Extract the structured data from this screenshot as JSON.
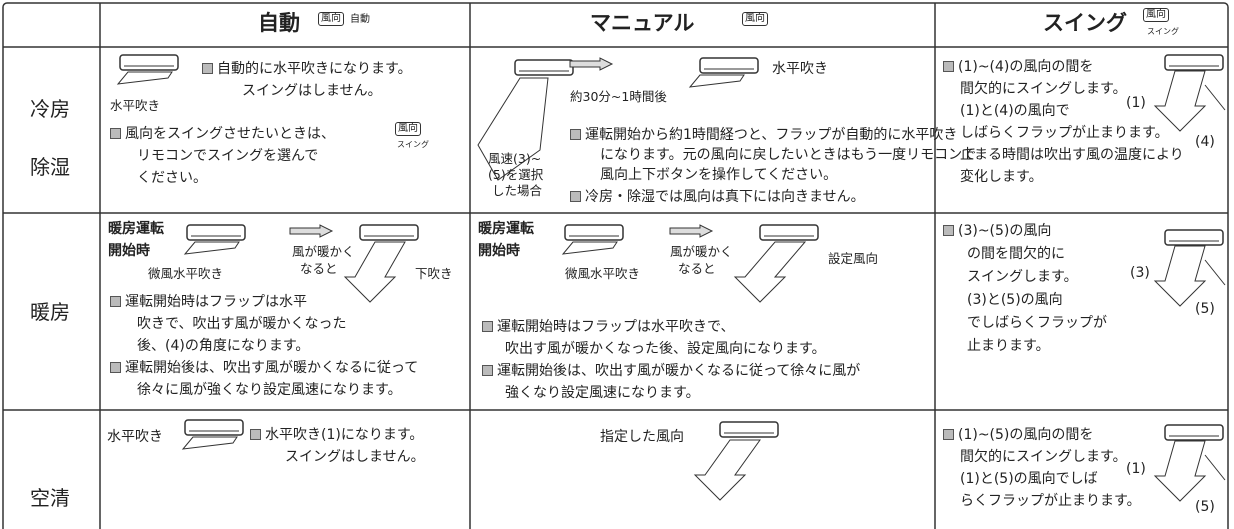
{
  "header": {
    "columns": [
      {
        "title": "自動",
        "icon": "風向",
        "icon_caption": "自動"
      },
      {
        "title": "マニュアル",
        "icon": "風向"
      },
      {
        "title": "スイング",
        "icon": "風向",
        "icon_caption": "スイング"
      }
    ]
  },
  "rows": [
    {
      "labels": [
        "冷房",
        "除湿"
      ],
      "auto": {
        "captions": [
          "水平吹き"
        ],
        "notes": [
          [
            "自動的に水平吹きになります。",
            "スイングはしません。"
          ],
          [
            "風向をスイングさせたいときは、",
            "リモコンでスイングを選んで",
            "ください。"
          ]
        ],
        "icon": "風向",
        "icon_caption": "スイング"
      },
      "manual": {
        "captions": [
          "水平吹き",
          "約30分~1時間後",
          "風速(3)~",
          "(5)を選択",
          "した場合"
        ],
        "notes": [
          [
            "運転開始から約1時間経つと、フラップが自動的に水平吹き",
            "になります。元の風向に戻したいときはもう一度リモコンで",
            "風向上下ボタンを操作してください。"
          ],
          [
            "冷房・除湿では風向は真下には向きません。"
          ]
        ]
      },
      "swing": {
        "notes": [
          [
            "(1)~(4)の風向の間を",
            "間欠的にスイングします。",
            "(1)と(4)の風向で",
            "しばらくフラップが止まります。",
            "止まる時間は吹出す風の温度により",
            "変化します。"
          ]
        ],
        "captions": [
          "(1)",
          "(4)"
        ]
      }
    },
    {
      "labels": [
        "暖房"
      ],
      "auto": {
        "captions": [
          "暖房運転",
          "開始時",
          "微風水平吹き",
          "風が暖かく",
          "なると",
          "下吹き"
        ],
        "notes": [
          [
            "運転開始時はフラップは水平",
            "吹きで、吹出す風が暖かくなった",
            "後、(4)の角度になります。"
          ],
          [
            "運転開始後は、吹出す風が暖かくなるに従って",
            "徐々に風が強くなり設定風速になります。"
          ]
        ]
      },
      "manual": {
        "captions": [
          "暖房運転",
          "開始時",
          "微風水平吹き",
          "風が暖かく",
          "なると",
          "設定風向"
        ],
        "notes": [
          [
            "運転開始時はフラップは水平吹きで、",
            "吹出す風が暖かくなった後、設定風向になります。"
          ],
          [
            "運転開始後は、吹出す風が暖かくなるに従って徐々に風が",
            "強くなり設定風速になります。"
          ]
        ]
      },
      "swing": {
        "notes": [
          [
            "(3)~(5)の風向",
            "の間を間欠的に",
            "スイングします。",
            "(3)と(5)の風向",
            "でしばらくフラップが",
            "止まります。"
          ]
        ],
        "captions": [
          "(3)",
          "(5)"
        ]
      }
    },
    {
      "labels": [
        "空清"
      ],
      "auto": {
        "captions": [
          "水平吹き"
        ],
        "notes": [
          [
            "水平吹き(1)になります。",
            "スイングはしません。"
          ]
        ]
      },
      "manual": {
        "captions": [
          "指定した風向"
        ]
      },
      "swing": {
        "notes": [
          [
            "(1)~(5)の風向の間を",
            "間欠的にスイングします。",
            "(1)と(5)の風向でしば",
            "らくフラップが止まります。"
          ]
        ],
        "captions": [
          "(1)",
          "(5)"
        ]
      }
    }
  ]
}
